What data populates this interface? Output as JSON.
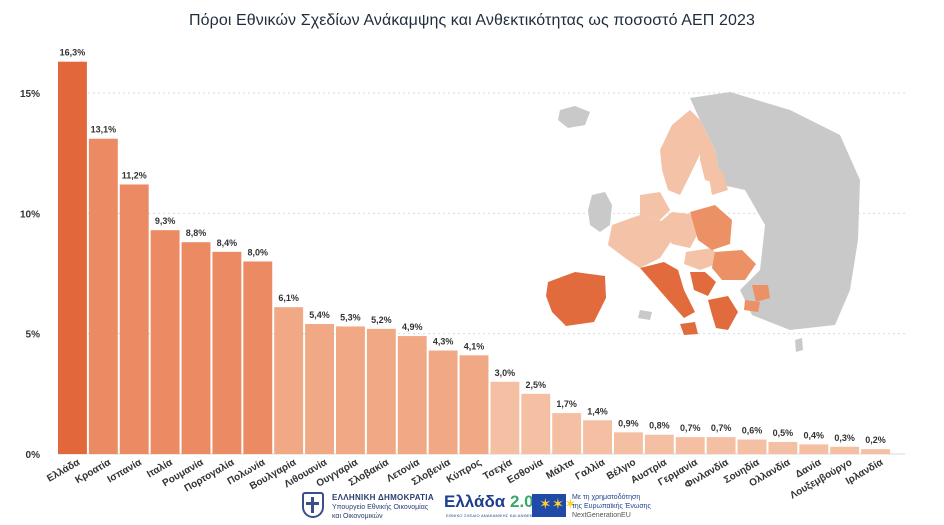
{
  "chart_data": {
    "type": "bar",
    "title": "Πόροι Εθνικών Σχεδίων Ανάκαμψης και Ανθεκτικότητας ως ποσοστό ΑΕΠ 2023",
    "categories": [
      "Ελλάδα",
      "Κροατία",
      "Ισπανία",
      "Ιταλία",
      "Ρουμανία",
      "Πορτογαλία",
      "Πολωνία",
      "Βουλγαρία",
      "Λιθουανία",
      "Ουγγαρία",
      "Σλοβακία",
      "Λετονία",
      "Σλοβενία",
      "Κύπρος",
      "Τσεχία",
      "Εσθονία",
      "Μάλτα",
      "Γαλλία",
      "Βέλγιο",
      "Αυστρία",
      "Γερμανία",
      "Φινλανδία",
      "Σουηδία",
      "Ολλανδία",
      "Δανία",
      "Λουξεμβούργο",
      "Ιρλανδία"
    ],
    "values": [
      16.3,
      13.1,
      11.2,
      9.3,
      8.8,
      8.4,
      8.0,
      6.1,
      5.4,
      5.3,
      5.2,
      4.9,
      4.3,
      4.1,
      3.0,
      2.5,
      1.7,
      1.4,
      0.9,
      0.8,
      0.7,
      0.7,
      0.6,
      0.5,
      0.4,
      0.3,
      0.2
    ],
    "value_labels": [
      "16,3%",
      "13,1%",
      "11,2%",
      "9,3%",
      "8,8%",
      "8,4%",
      "8,0%",
      "6,1%",
      "5,4%",
      "5,3%",
      "5,2%",
      "4,9%",
      "4,3%",
      "4,1%",
      "3,0%",
      "2,5%",
      "1,7%",
      "1,4%",
      "0,9%",
      "0,8%",
      "0,7%",
      "0,7%",
      "0,6%",
      "0,5%",
      "0,4%",
      "0,3%",
      "0,2%"
    ],
    "y_ticks": [
      {
        "value": 0,
        "label": "0%"
      },
      {
        "value": 5,
        "label": "5%"
      },
      {
        "value": 10,
        "label": "10%"
      },
      {
        "value": 15,
        "label": "15%"
      }
    ],
    "ylim": [
      0,
      17
    ],
    "xlabel": "",
    "ylabel": "",
    "grid": true,
    "colors": {
      "highest": "#e2673a",
      "high": "#ec8a63",
      "mid": "#f1a884",
      "low": "#f4bfa3",
      "gridline": "#d9d9d9"
    },
    "map_icon": "europe-choropleth-map"
  },
  "footer": {
    "gov_title": "ΕΛΛΗΝΙΚΗ ΔΗΜΟΚΡΑΤΙΑ",
    "gov_line1": "Υπουργείο Εθνικής Οικονομίας",
    "gov_line2": "και Οικονομικών",
    "ellada_logo": "Ελλάδα",
    "ellada_version": "2.0",
    "ellada_sub": "ΕΘΝΙΚΟ ΣΧΕΔΙΟ ΑΝΑΚΑΜΨΗΣ ΚΑΙ ΑΝΘΕΚΤΙΚΟΤΗΤΑΣ",
    "eu_line1": "Με τη χρηματοδότηση",
    "eu_line2": "της Ευρωπαϊκής Ένωσης",
    "eu_line3": "NextGenerationEU"
  }
}
